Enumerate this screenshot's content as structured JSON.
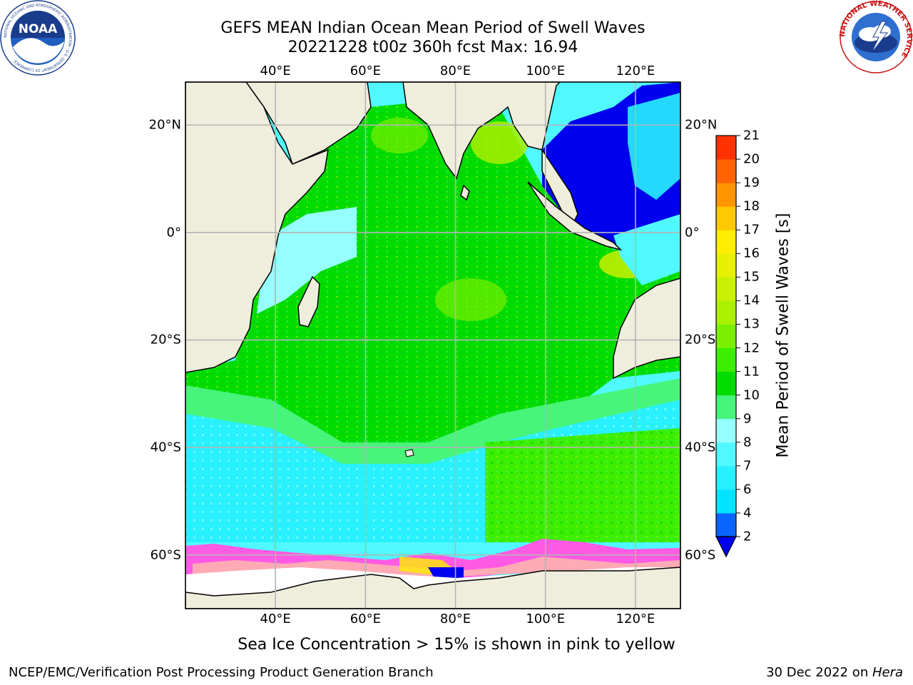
{
  "title": {
    "line1": "GEFS MEAN Indian Ocean Mean Period of Swell Waves",
    "line2": "20221228 t00z 360h fcst   Max: 16.94"
  },
  "logos": {
    "noaa_text": "NOAA",
    "noaa_ring_text": "NATIONAL OCEANIC AND ATMOSPHERIC ADMINISTRATION · U.S. DEPARTMENT OF COMMERCE",
    "nws_ring_text": "NATIONAL WEATHER SERVICE"
  },
  "map": {
    "lon_range": [
      20,
      130
    ],
    "lat_range": [
      -70,
      28
    ],
    "lon_ticks": [
      {
        "value": 40,
        "label": "40°E"
      },
      {
        "value": 60,
        "label": "60°E"
      },
      {
        "value": 80,
        "label": "80°E"
      },
      {
        "value": 100,
        "label": "100°E"
      },
      {
        "value": 120,
        "label": "120°E"
      }
    ],
    "lat_ticks": [
      {
        "value": 20,
        "label": "20°N"
      },
      {
        "value": 0,
        "label": "0°"
      },
      {
        "value": -20,
        "label": "20°S"
      },
      {
        "value": -40,
        "label": "40°S"
      },
      {
        "value": -60,
        "label": "60°S"
      }
    ],
    "land_color": "#efeedd",
    "ice_note": "Sea Ice Concentration > 15% is shown in pink to yellow"
  },
  "colorbar": {
    "label": "Mean Period of Swell Waves [s]",
    "levels": [
      2,
      4,
      6,
      7,
      8,
      9,
      10,
      11,
      12,
      13,
      14,
      15,
      16,
      17,
      18,
      19,
      20,
      21
    ],
    "tick_labels": [
      "2",
      "4",
      "6",
      "7",
      "8",
      "9",
      "10",
      "11",
      "12",
      "13",
      "14",
      "15",
      "16",
      "17",
      "18",
      "19",
      "20",
      "21"
    ],
    "colors": [
      "#0a64ff",
      "#00e4ff",
      "#28f0ff",
      "#50f8ff",
      "#96ffff",
      "#46f57a",
      "#00dc00",
      "#3cee00",
      "#78f000",
      "#aaf000",
      "#c8f000",
      "#e6f000",
      "#ffee00",
      "#ffc800",
      "#ff9600",
      "#ff6400",
      "#ff3200"
    ],
    "under_color": "#0000ee"
  },
  "footer": {
    "left": "NCEP/EMC/Verification Post Processing Product Generation Branch",
    "right_prefix": "30 Dec 2022 on ",
    "right_host": "Hera"
  }
}
